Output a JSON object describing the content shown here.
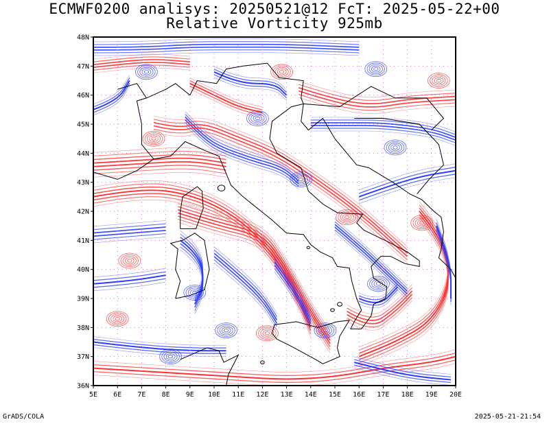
{
  "title": {
    "line1": "ECMWF0200 analisys: 20250521@12 FcT: 2025-05-22+00",
    "line2": "Relative Vorticity 925mb"
  },
  "map": {
    "lon_ticks": [
      "5E",
      "6E",
      "7E",
      "8E",
      "9E",
      "10E",
      "11E",
      "12E",
      "13E",
      "14E",
      "15E",
      "16E",
      "17E",
      "18E",
      "19E",
      "20E"
    ],
    "lat_ticks": [
      "48N",
      "47N",
      "46N",
      "45N",
      "44N",
      "43N",
      "42N",
      "41N",
      "40N",
      "39N",
      "38N",
      "37N",
      "36N"
    ],
    "lon_range": [
      5,
      20
    ],
    "lat_range": [
      36,
      48
    ],
    "colors": {
      "positive_contour": "#ff3030",
      "negative_contour": "#2a3cff",
      "coastline": "#000000",
      "grid_dots": "#c080c0"
    }
  },
  "footer": {
    "left": "GrADS/COLA",
    "right": "2025-05-21-21:54"
  }
}
